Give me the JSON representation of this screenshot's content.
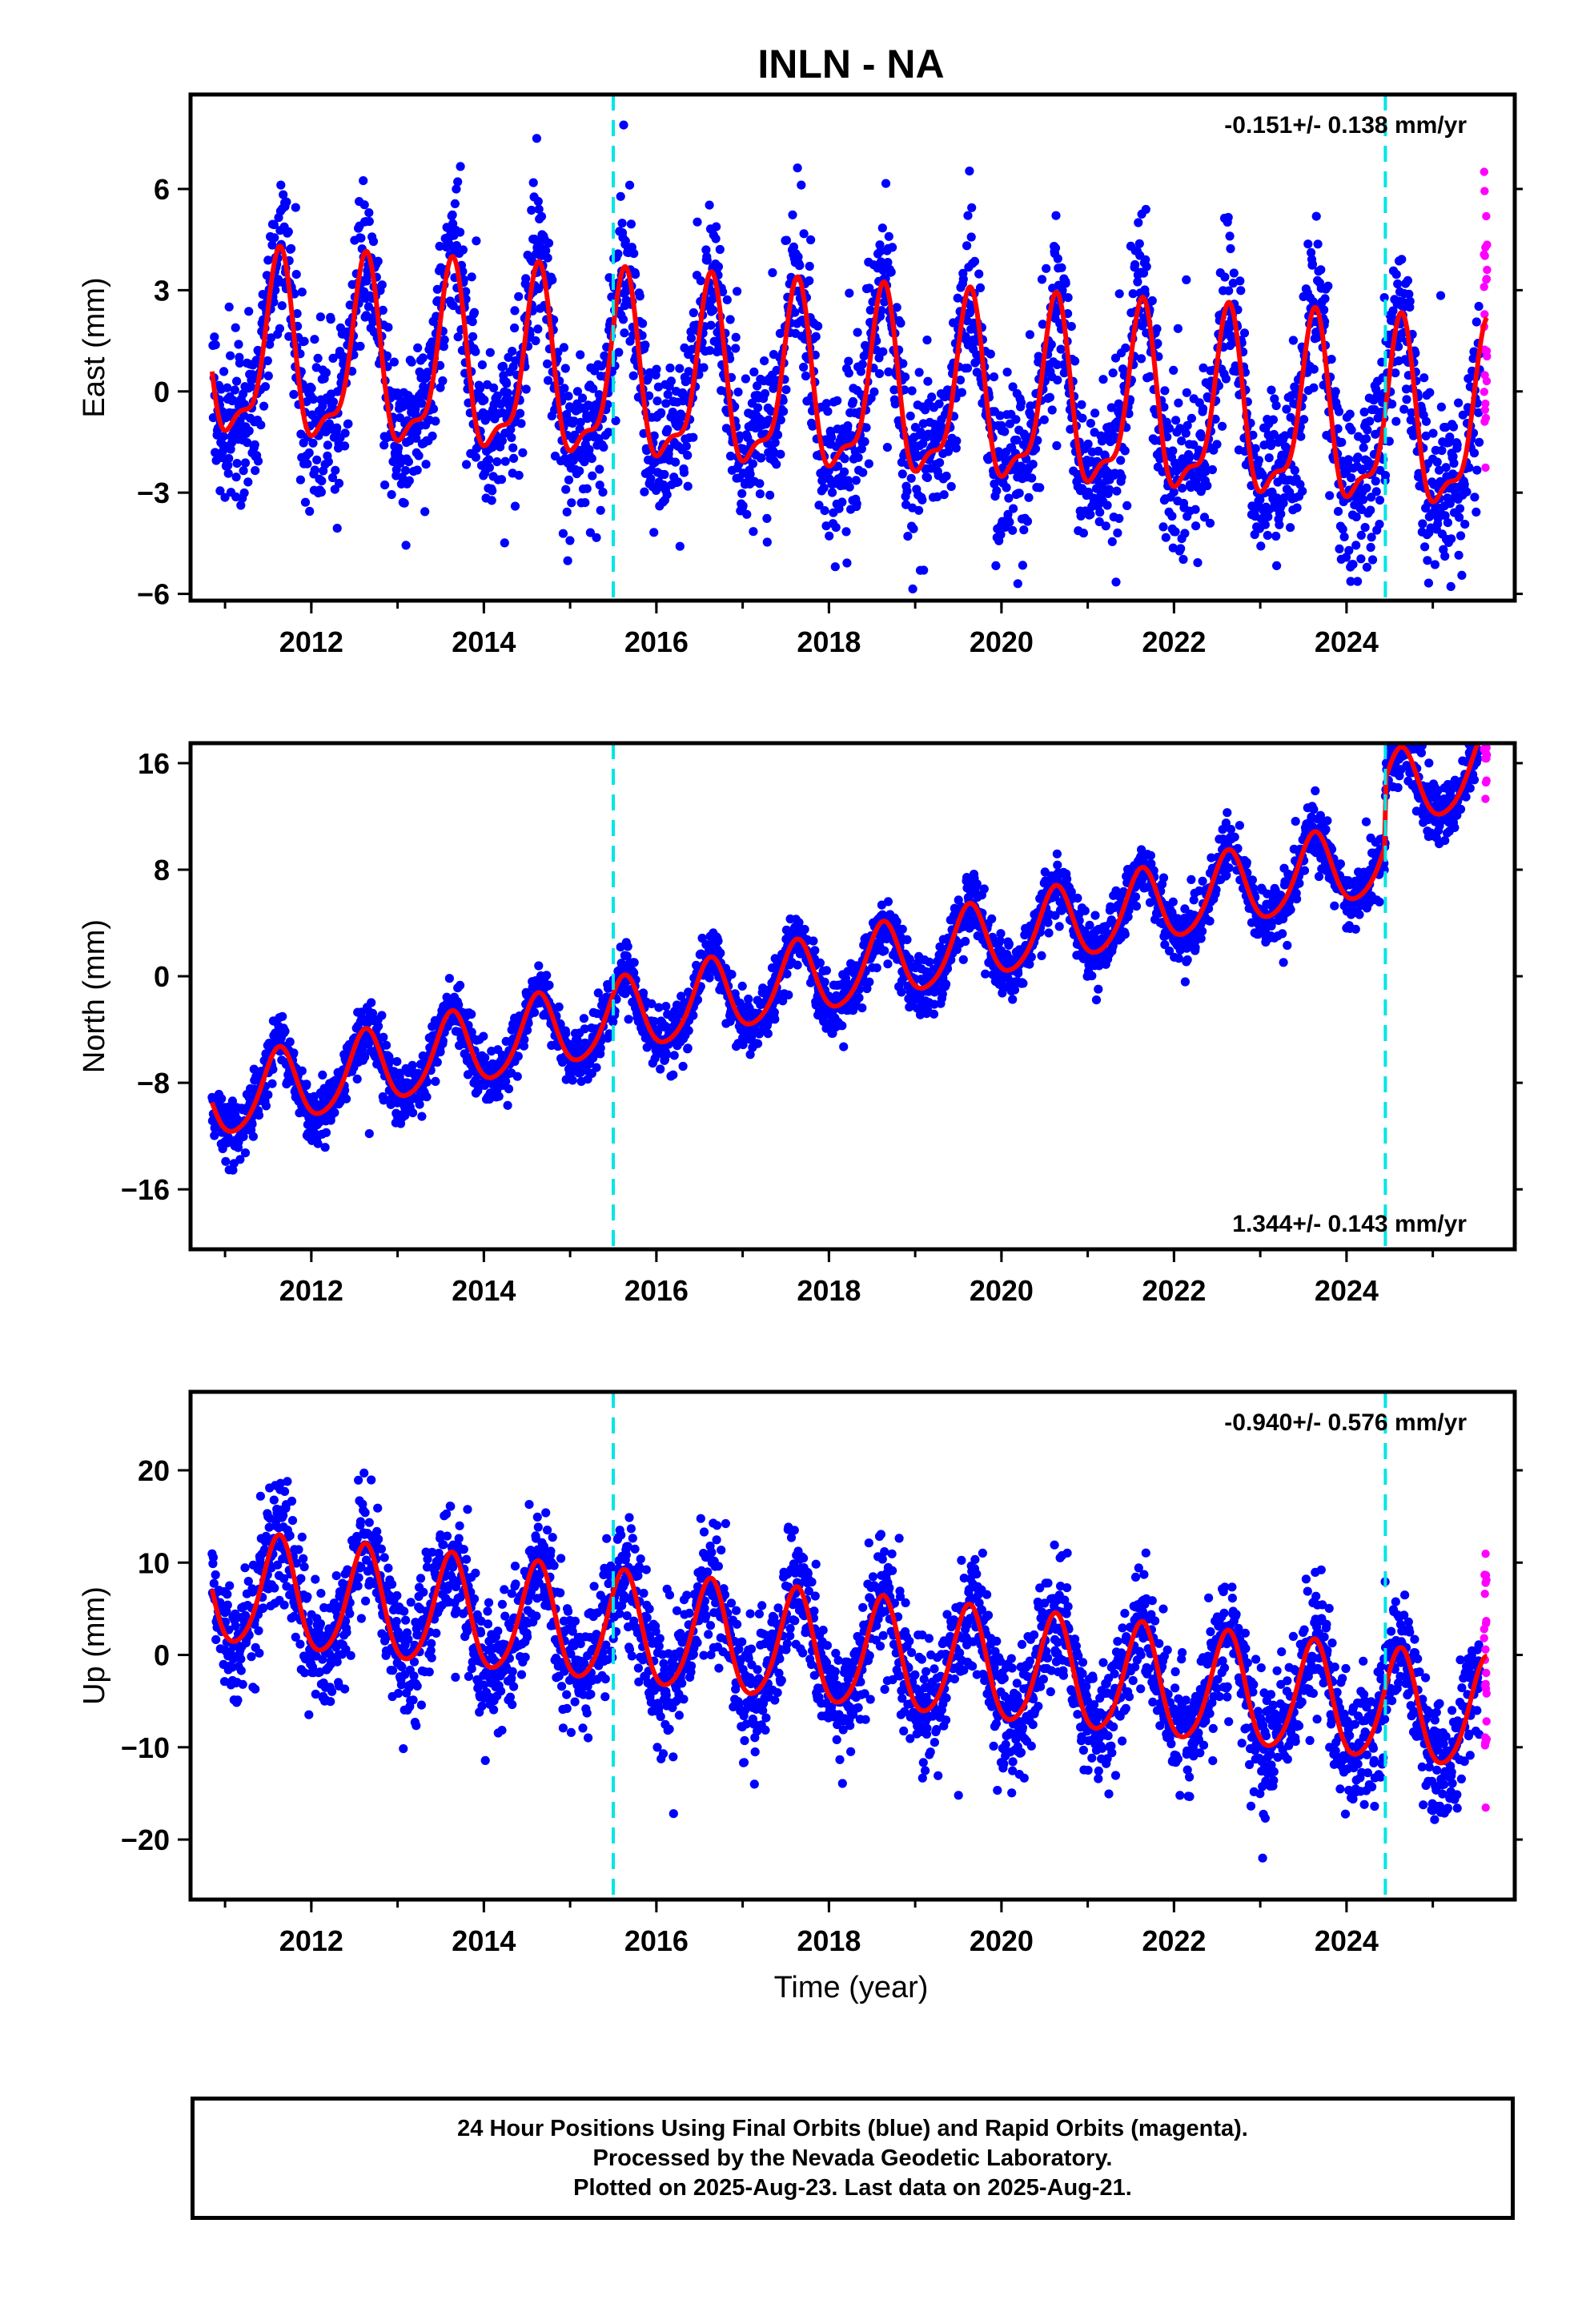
{
  "title": "INLN - NA",
  "x_axis_label": "Time (year)",
  "caption": {
    "line1": "24 Hour Positions Using Final Orbits (blue) and Rapid Orbits (magenta).",
    "line2": "Processed by the Nevada Geodetic Laboratory.",
    "line3": "Plotted on 2025-Aug-23. Last data on 2025-Aug-21."
  },
  "colors": {
    "final_orbits": "#0000ff",
    "rapid_orbits": "#ff00ff",
    "model_fit": "#ff0000",
    "equipment_change": "#00e5e5"
  },
  "chart_data": [
    {
      "type": "scatter",
      "component": "east",
      "ylabel": "East (mm)",
      "xlim": [
        2010.6,
        2025.95
      ],
      "ylim": [
        -6.2,
        8.8
      ],
      "y_ticks": [
        -6,
        -3,
        0,
        3,
        6
      ],
      "x_ticks": [
        2012,
        2014,
        2016,
        2018,
        2020,
        2022,
        2024
      ],
      "rate_text": "-0.151+/- 0.138 mm/yr",
      "rate_position": "top-right",
      "equipment_change_years": [
        2015.5,
        2024.45
      ],
      "model": {
        "offset": 1.0,
        "trend": -0.151,
        "annual_amp": 2.55,
        "semiannual_amp": 0.9,
        "scatter": 1.6,
        "trend_start": 2010.85
      },
      "data_span": [
        2010.85,
        2025.55
      ],
      "rapid_span": [
        2025.5,
        2025.63
      ],
      "grid": false
    },
    {
      "type": "scatter",
      "component": "north",
      "ylabel": "North (mm)",
      "xlim": [
        2010.6,
        2025.95
      ],
      "ylim": [
        -20.5,
        17.5
      ],
      "y_ticks": [
        -16,
        -8,
        0,
        8,
        16
      ],
      "x_ticks": [
        2012,
        2014,
        2016,
        2018,
        2020,
        2022,
        2024
      ],
      "rate_text": "1.344+/- 0.143 mm/yr",
      "rate_position": "bottom-right",
      "equipment_change_years": [
        2015.5,
        2024.45
      ],
      "model": {
        "offset": -9.5,
        "trend": 1.344,
        "annual_amp": 2.8,
        "semiannual_amp": 0.4,
        "scatter": 1.4,
        "step_at": 2024.45,
        "step": 5.0,
        "trend_start": 2010.85
      },
      "data_span": [
        2010.85,
        2025.55
      ],
      "rapid_span": [
        2025.5,
        2025.63
      ],
      "grid": false
    },
    {
      "type": "scatter",
      "component": "up",
      "ylabel": "Up (mm)",
      "xlim": [
        2010.6,
        2025.95
      ],
      "ylim": [
        -26.5,
        28.5
      ],
      "y_ticks": [
        -20,
        -10,
        0,
        10,
        20
      ],
      "x_ticks": [
        2012,
        2014,
        2016,
        2018,
        2020,
        2022,
        2024
      ],
      "rate_text": "-0.940+/- 0.576 mm/yr",
      "rate_position": "top-right",
      "equipment_change_years": [
        2015.5,
        2024.45
      ],
      "model": {
        "offset": 7.0,
        "trend": -0.94,
        "annual_amp": 6.0,
        "semiannual_amp": 0.8,
        "scatter": 4.5,
        "trend_start": 2010.85
      },
      "data_span": [
        2010.85,
        2025.55
      ],
      "rapid_span": [
        2025.5,
        2025.63
      ],
      "grid": false
    }
  ]
}
